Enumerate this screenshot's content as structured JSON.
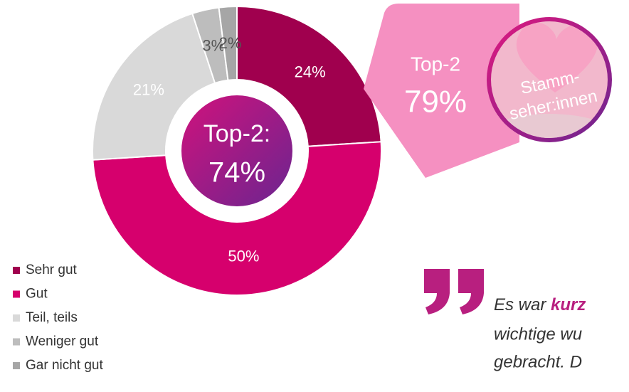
{
  "chart_data": {
    "type": "donut",
    "categories": [
      "Sehr gut",
      "Gut",
      "Teil, teils",
      "Weniger gut",
      "Gar nicht gut"
    ],
    "values": [
      24,
      50,
      21,
      3,
      2
    ],
    "value_labels": [
      "24%",
      "50%",
      "21%",
      "3%",
      "2%"
    ],
    "colors": [
      "#a0004e",
      "#d6006d",
      "#d9d9d9",
      "#bdbdbd",
      "#a6a6a6"
    ],
    "center_label": [
      "Top-2:",
      "74%"
    ],
    "legend": "bottom-left"
  },
  "callout": {
    "title": "Top-2",
    "value": "79%",
    "label": [
      "Stamm-",
      "seher:innen"
    ]
  },
  "quote": {
    "lines": [
      [
        "Es war ",
        "kurz"
      ],
      [
        "wichtige wu"
      ],
      [
        "gebracht. D"
      ]
    ]
  }
}
